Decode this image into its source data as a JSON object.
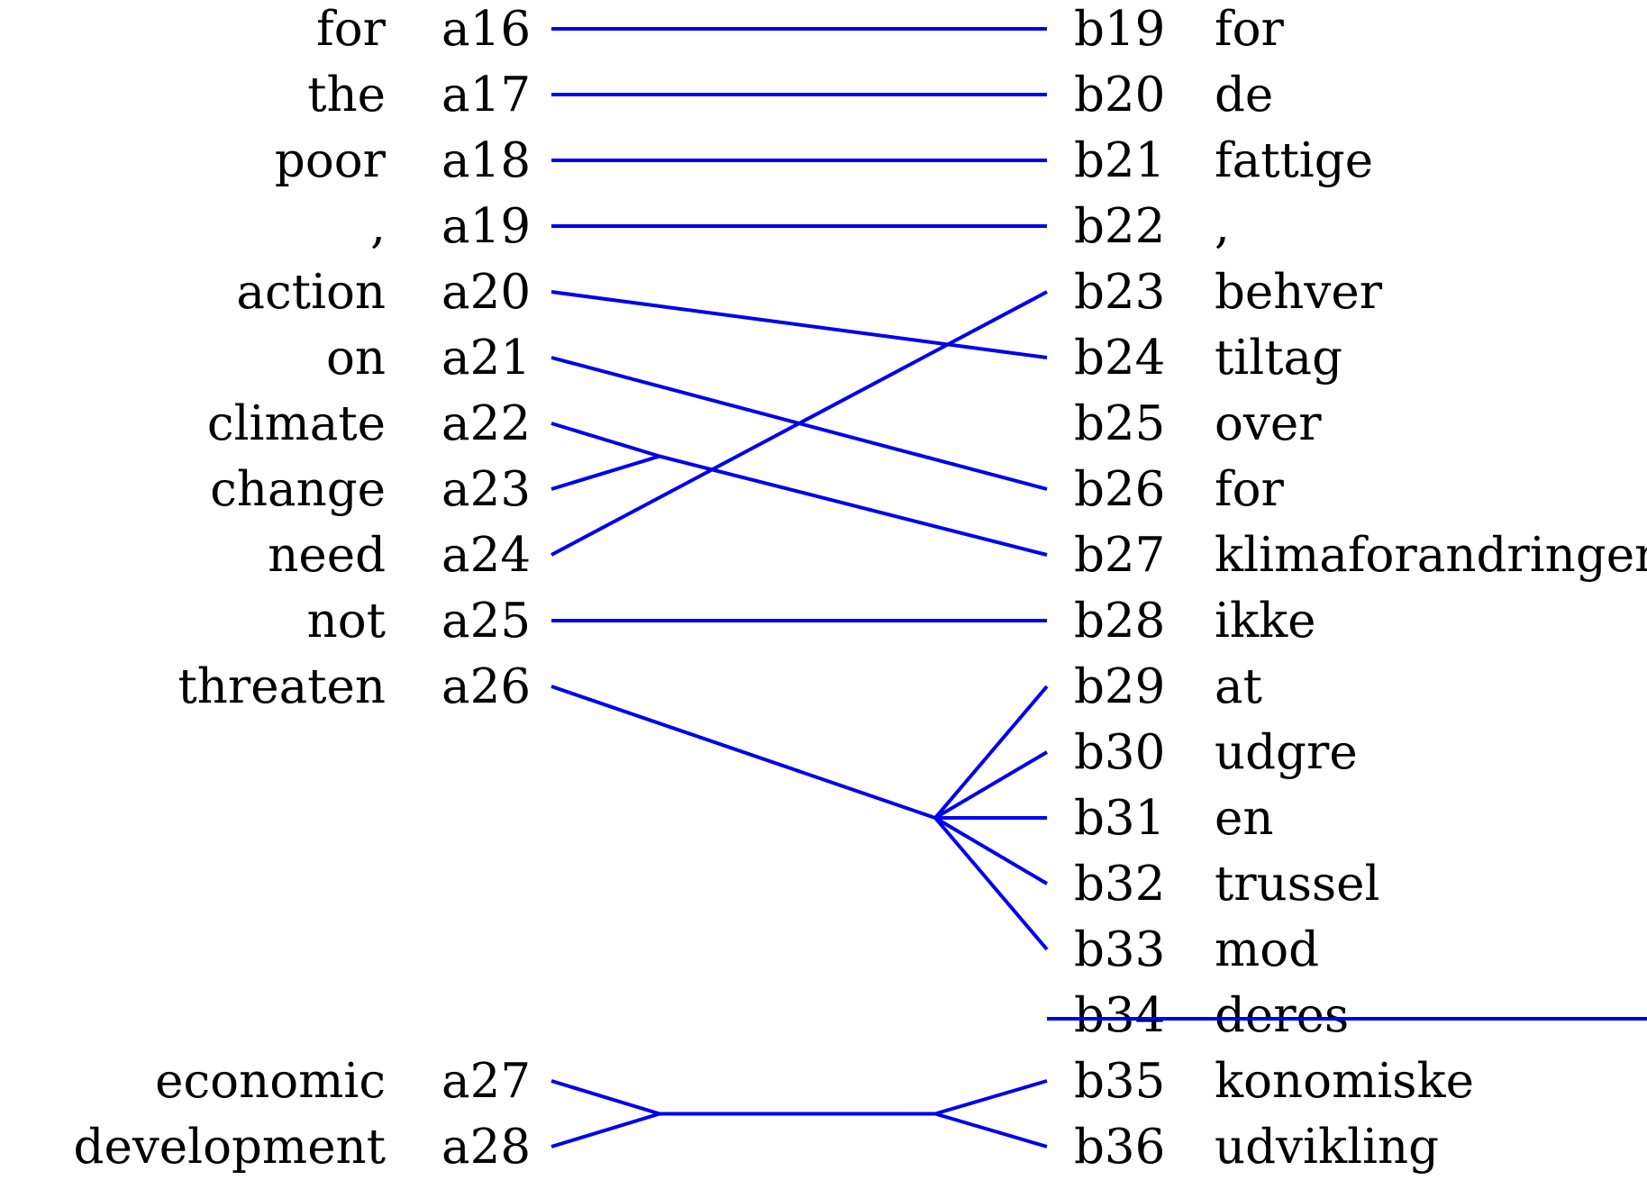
{
  "colors": {
    "link": "#0000ee",
    "text": "#000000",
    "background": "#ffffff"
  },
  "source": [
    {
      "id": "a16",
      "word": "for"
    },
    {
      "id": "a17",
      "word": "the"
    },
    {
      "id": "a18",
      "word": "poor"
    },
    {
      "id": "a19",
      "word": ","
    },
    {
      "id": "a20",
      "word": "action"
    },
    {
      "id": "a21",
      "word": "on"
    },
    {
      "id": "a22",
      "word": "climate"
    },
    {
      "id": "a23",
      "word": "change"
    },
    {
      "id": "a24",
      "word": "need"
    },
    {
      "id": "a25",
      "word": "not"
    },
    {
      "id": "a26",
      "word": "threaten"
    },
    {
      "id": "a27",
      "word": "economic"
    },
    {
      "id": "a28",
      "word": "development"
    }
  ],
  "target": [
    {
      "id": "b19",
      "word": "for"
    },
    {
      "id": "b20",
      "word": "de"
    },
    {
      "id": "b21",
      "word": "fattige"
    },
    {
      "id": "b22",
      "word": ","
    },
    {
      "id": "b23",
      "word": "behver"
    },
    {
      "id": "b24",
      "word": "tiltag"
    },
    {
      "id": "b25",
      "word": "over"
    },
    {
      "id": "b26",
      "word": "for"
    },
    {
      "id": "b27",
      "word": "klimaforandringer"
    },
    {
      "id": "b28",
      "word": "ikke"
    },
    {
      "id": "b29",
      "word": "at"
    },
    {
      "id": "b30",
      "word": "udgre"
    },
    {
      "id": "b31",
      "word": "en"
    },
    {
      "id": "b32",
      "word": "trussel"
    },
    {
      "id": "b33",
      "word": "mod"
    },
    {
      "id": "b34",
      "word": "deres"
    },
    {
      "id": "b35",
      "word": "konomiske"
    },
    {
      "id": "b36",
      "word": "udvikling"
    }
  ],
  "alignments": [
    {
      "source": [
        "a16"
      ],
      "target": [
        "b19"
      ]
    },
    {
      "source": [
        "a17"
      ],
      "target": [
        "b20"
      ]
    },
    {
      "source": [
        "a18"
      ],
      "target": [
        "b21"
      ]
    },
    {
      "source": [
        "a19"
      ],
      "target": [
        "b22"
      ]
    },
    {
      "source": [
        "a20"
      ],
      "target": [
        "b24"
      ]
    },
    {
      "source": [
        "a21"
      ],
      "target": [
        "b26"
      ]
    },
    {
      "source": [
        "a22",
        "a23"
      ],
      "target": [
        "b27"
      ]
    },
    {
      "source": [
        "a24"
      ],
      "target": [
        "b23"
      ]
    },
    {
      "source": [
        "a25"
      ],
      "target": [
        "b28"
      ]
    },
    {
      "source": [
        "a26"
      ],
      "target": [
        "b29",
        "b30",
        "b31",
        "b32",
        "b33"
      ]
    },
    {
      "source": [
        "a27",
        "a28"
      ],
      "target": [
        "b35",
        "b36"
      ]
    }
  ],
  "unaligned_strikethrough": [
    "b34"
  ]
}
